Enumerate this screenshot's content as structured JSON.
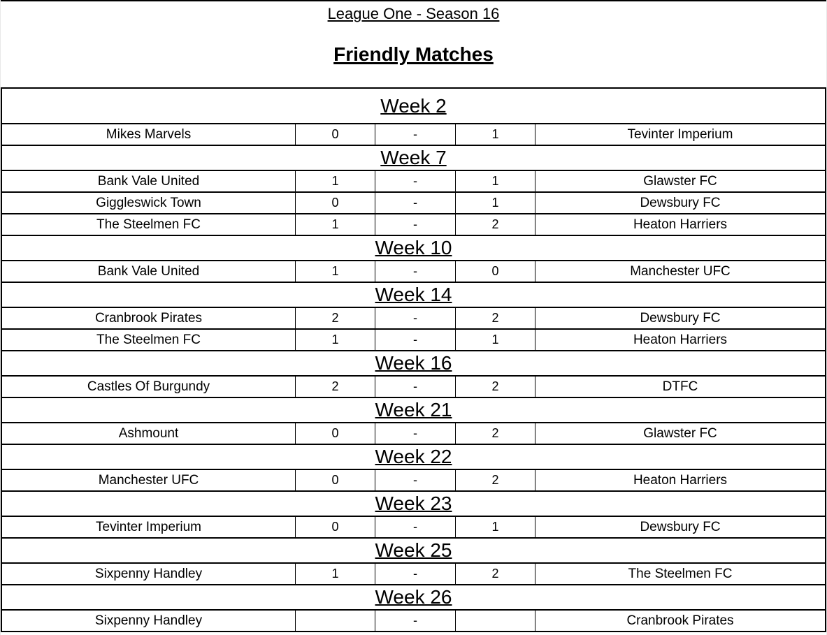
{
  "header": {
    "league_title": "League One - Season 16",
    "page_title": "Friendly Matches"
  },
  "score_separator": "-",
  "colors": {
    "text": "#000000",
    "border": "#000000",
    "background": "#ffffff"
  },
  "weeks": [
    {
      "label": "Week 2",
      "matches": [
        {
          "home": "Mikes Marvels",
          "home_score": "0",
          "away_score": "1",
          "away": "Tevinter Imperium"
        }
      ]
    },
    {
      "label": "Week 7",
      "matches": [
        {
          "home": "Bank Vale United",
          "home_score": "1",
          "away_score": "1",
          "away": "Glawster FC"
        },
        {
          "home": "Giggleswick Town",
          "home_score": "0",
          "away_score": "1",
          "away": "Dewsbury FC"
        },
        {
          "home": "The Steelmen FC",
          "home_score": "1",
          "away_score": "2",
          "away": "Heaton Harriers"
        }
      ]
    },
    {
      "label": "Week 10",
      "matches": [
        {
          "home": "Bank Vale United",
          "home_score": "1",
          "away_score": "0",
          "away": "Manchester UFC"
        }
      ]
    },
    {
      "label": "Week 14",
      "matches": [
        {
          "home": "Cranbrook Pirates",
          "home_score": "2",
          "away_score": "2",
          "away": "Dewsbury FC"
        },
        {
          "home": "The Steelmen FC",
          "home_score": "1",
          "away_score": "1",
          "away": "Heaton Harriers"
        }
      ]
    },
    {
      "label": "Week 16",
      "matches": [
        {
          "home": "Castles Of Burgundy",
          "home_score": "2",
          "away_score": "2",
          "away": "DTFC"
        }
      ]
    },
    {
      "label": "Week 21",
      "matches": [
        {
          "home": "Ashmount",
          "home_score": "0",
          "away_score": "2",
          "away": "Glawster FC"
        }
      ]
    },
    {
      "label": "Week 22",
      "matches": [
        {
          "home": "Manchester UFC",
          "home_score": "0",
          "away_score": "2",
          "away": "Heaton Harriers"
        }
      ]
    },
    {
      "label": "Week 23",
      "matches": [
        {
          "home": "Tevinter Imperium",
          "home_score": "0",
          "away_score": "1",
          "away": "Dewsbury FC"
        }
      ]
    },
    {
      "label": "Week 25",
      "matches": [
        {
          "home": "Sixpenny Handley",
          "home_score": "1",
          "away_score": "2",
          "away": "The Steelmen FC"
        }
      ]
    },
    {
      "label": "Week 26",
      "matches": [
        {
          "home": "Sixpenny Handley",
          "home_score": "",
          "away_score": "",
          "away": "Cranbrook Pirates"
        }
      ]
    }
  ]
}
